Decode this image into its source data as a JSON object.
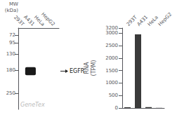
{
  "chart_data": [
    {
      "type": "blot",
      "categories": [
        "293T",
        "A431",
        "HeLa",
        "HepG2"
      ],
      "ylabel": "MW\n(kDa)",
      "ylim": [
        50,
        300
      ],
      "yticks": [
        250,
        180,
        130,
        95,
        72
      ],
      "color": "#1a1a1a",
      "annotations": [
        "EGFR",
        "GeneTex"
      ],
      "grid": false
    },
    {
      "type": "bar",
      "categories": [
        "293T",
        "A431",
        "HeLa",
        "HepG2"
      ],
      "values": [
        30,
        2950,
        35,
        5
      ],
      "color": "#3a3a3a",
      "ylabel": "RNA\n(TPM)",
      "ylim": [
        0,
        3200
      ],
      "yticks": [
        0,
        500,
        1000,
        1500,
        2000,
        2500,
        3000
      ],
      "grid": false
    }
  ]
}
